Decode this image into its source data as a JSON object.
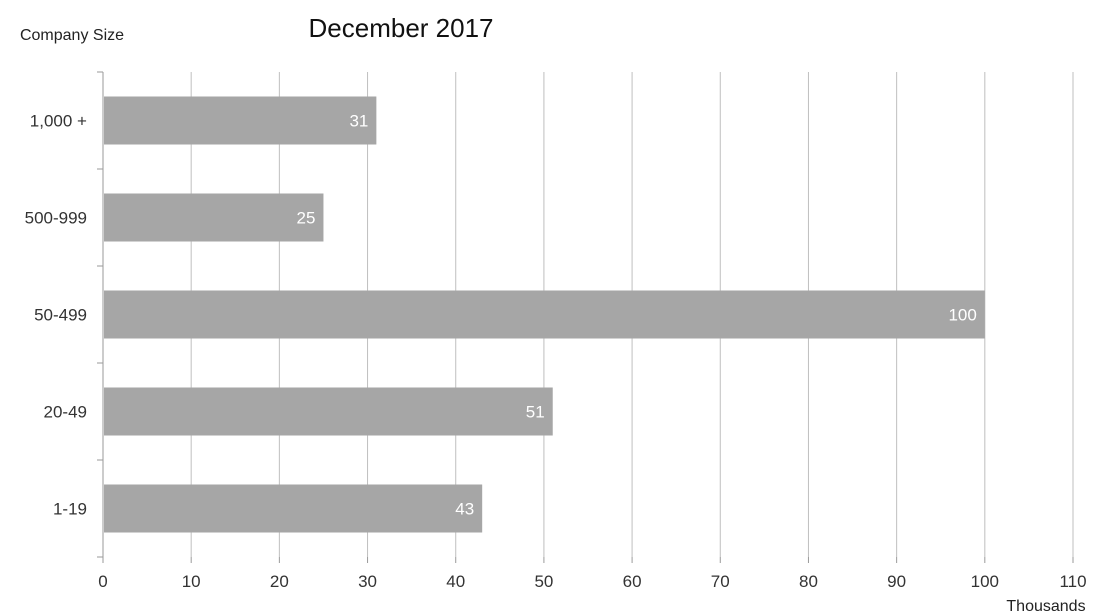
{
  "chart_data": {
    "type": "bar",
    "orientation": "horizontal",
    "title": "December 2017",
    "ylabel": "Company Size",
    "xlabel": "Thousands",
    "categories": [
      "1,000 +",
      "500-999",
      "50-499",
      "20-49",
      "1-19"
    ],
    "values": [
      31,
      25,
      100,
      51,
      43
    ],
    "data_labels": [
      "31",
      "25",
      "100",
      "51",
      "43"
    ],
    "xlim": [
      0,
      110
    ],
    "x_ticks": [
      0,
      10,
      20,
      30,
      40,
      50,
      60,
      70,
      80,
      90,
      100,
      110
    ],
    "x_tick_labels": [
      "0",
      "10",
      "20",
      "30",
      "40",
      "50",
      "60",
      "70",
      "80",
      "90",
      "100",
      "110"
    ],
    "grid": "vertical",
    "legend": "none",
    "colors": {
      "bar": "#a6a6a6",
      "grid": "#bfbfbf",
      "axis": "#9a9a9a",
      "data_label": "#ffffff"
    }
  }
}
